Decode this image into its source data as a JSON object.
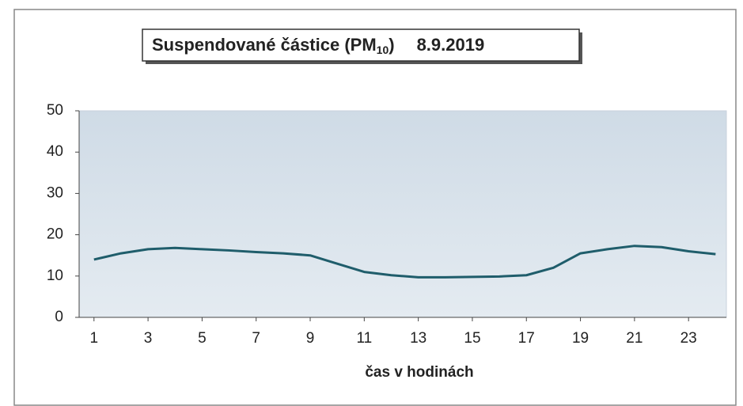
{
  "chart_data": {
    "type": "line",
    "title": {
      "text": "Suspendované částice (PM",
      "subscript": "10",
      "suffix": ")"
    },
    "date": "8.9.2019",
    "x_label": "čas v hodinách",
    "x": [
      1,
      2,
      3,
      4,
      5,
      6,
      7,
      8,
      9,
      10,
      11,
      12,
      13,
      14,
      15,
      16,
      17,
      18,
      19,
      20,
      21,
      22,
      23,
      24
    ],
    "values": [
      14,
      15.5,
      16.5,
      16.8,
      16.5,
      16.2,
      15.8,
      15.5,
      15,
      13,
      11,
      10.2,
      9.7,
      9.7,
      9.8,
      9.9,
      10.2,
      12,
      15.5,
      16.5,
      17.3,
      17,
      16,
      15.3
    ],
    "color": "#1f5d6b",
    "xlim": [
      0.45,
      24.4
    ],
    "xticks": [
      1,
      3,
      5,
      7,
      9,
      11,
      13,
      15,
      17,
      19,
      21,
      23
    ],
    "ylim": [
      0,
      50
    ],
    "yticks": [
      0,
      10,
      20,
      30,
      40,
      50
    ],
    "grid": false
  }
}
